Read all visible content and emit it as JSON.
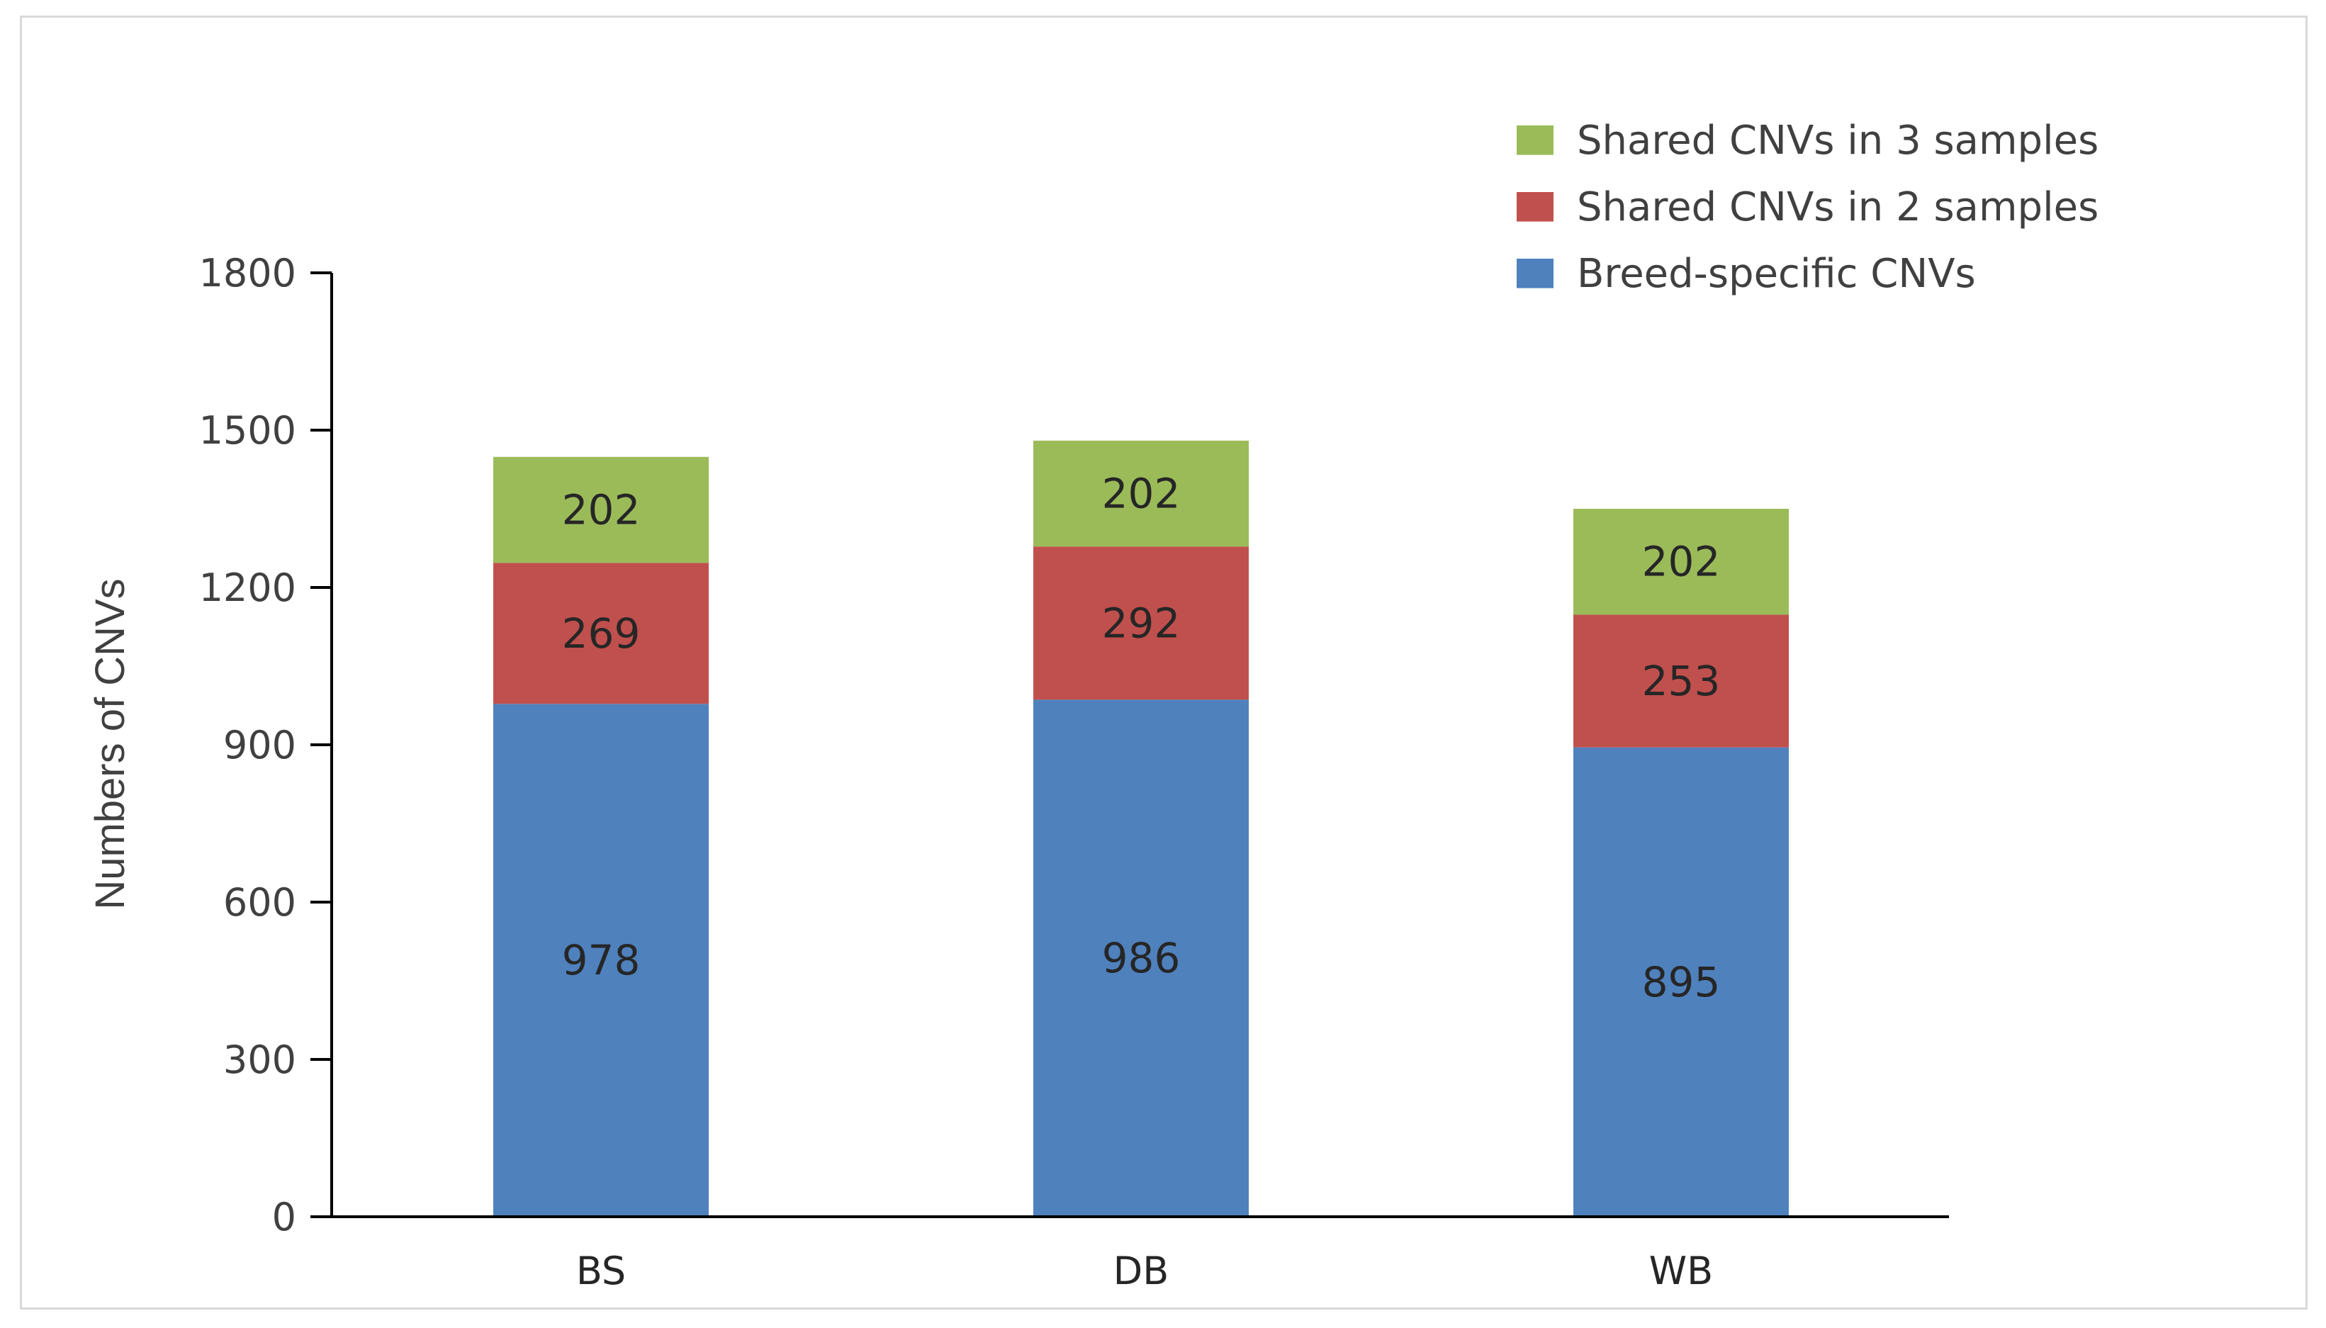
{
  "chart_data": {
    "type": "bar",
    "stacked": true,
    "title": "",
    "xlabel": "",
    "ylabel": "Numbers of CNVs",
    "ylim": [
      0,
      1800
    ],
    "yticks": [
      0,
      300,
      600,
      900,
      1200,
      1500,
      1800
    ],
    "categories": [
      "BS",
      "DB",
      "WB"
    ],
    "series": [
      {
        "name": "Breed-specific CNVs",
        "color": "#4f81bd",
        "values": [
          978,
          986,
          895
        ]
      },
      {
        "name": "Shared CNVs in 2 samples",
        "color": "#c0504d",
        "values": [
          269,
          292,
          253
        ]
      },
      {
        "name": "Shared CNVs in 3 samples",
        "color": "#9bbb59",
        "values": [
          202,
          202,
          202
        ]
      }
    ],
    "legend": {
      "position": "top-right",
      "order": [
        "Shared CNVs in 3 samples",
        "Shared CNVs in 2 samples",
        "Breed-specific CNVs"
      ]
    },
    "grid": false
  }
}
